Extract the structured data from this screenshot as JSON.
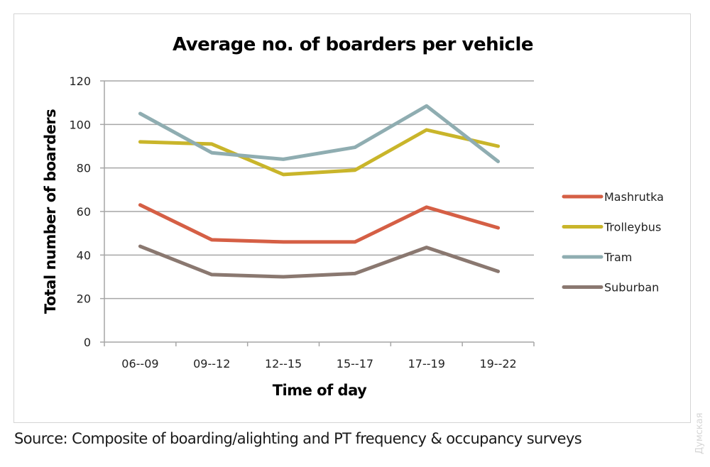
{
  "chart_data": {
    "type": "line",
    "title": "Average no. of boarders per vehicle",
    "xlabel": "Time of day",
    "ylabel": "Total number of boarders",
    "categories": [
      "06--09",
      "09--12",
      "12--15",
      "15--17",
      "17--19",
      "19--22"
    ],
    "ylim": [
      0,
      120
    ],
    "yticks": [
      0,
      20,
      40,
      60,
      80,
      100,
      120
    ],
    "grid": true,
    "legend_position": "right",
    "series": [
      {
        "name": "Mashrutka",
        "color": "#d55f45",
        "values": [
          63,
          47,
          46,
          46,
          62,
          52.5
        ]
      },
      {
        "name": "Trolleybus",
        "color": "#c9b52a",
        "values": [
          92,
          91,
          77,
          79,
          97.5,
          90
        ]
      },
      {
        "name": "Tram",
        "color": "#8fadb1",
        "values": [
          105,
          87,
          84,
          89.5,
          108.5,
          83
        ]
      },
      {
        "name": "Suburban",
        "color": "#8a7870",
        "values": [
          44,
          31,
          30,
          31.5,
          43.5,
          32.5
        ]
      }
    ]
  },
  "source_note": "Source: Composite of boarding/alighting and PT frequency & occupancy surveys",
  "watermark": "Думская"
}
